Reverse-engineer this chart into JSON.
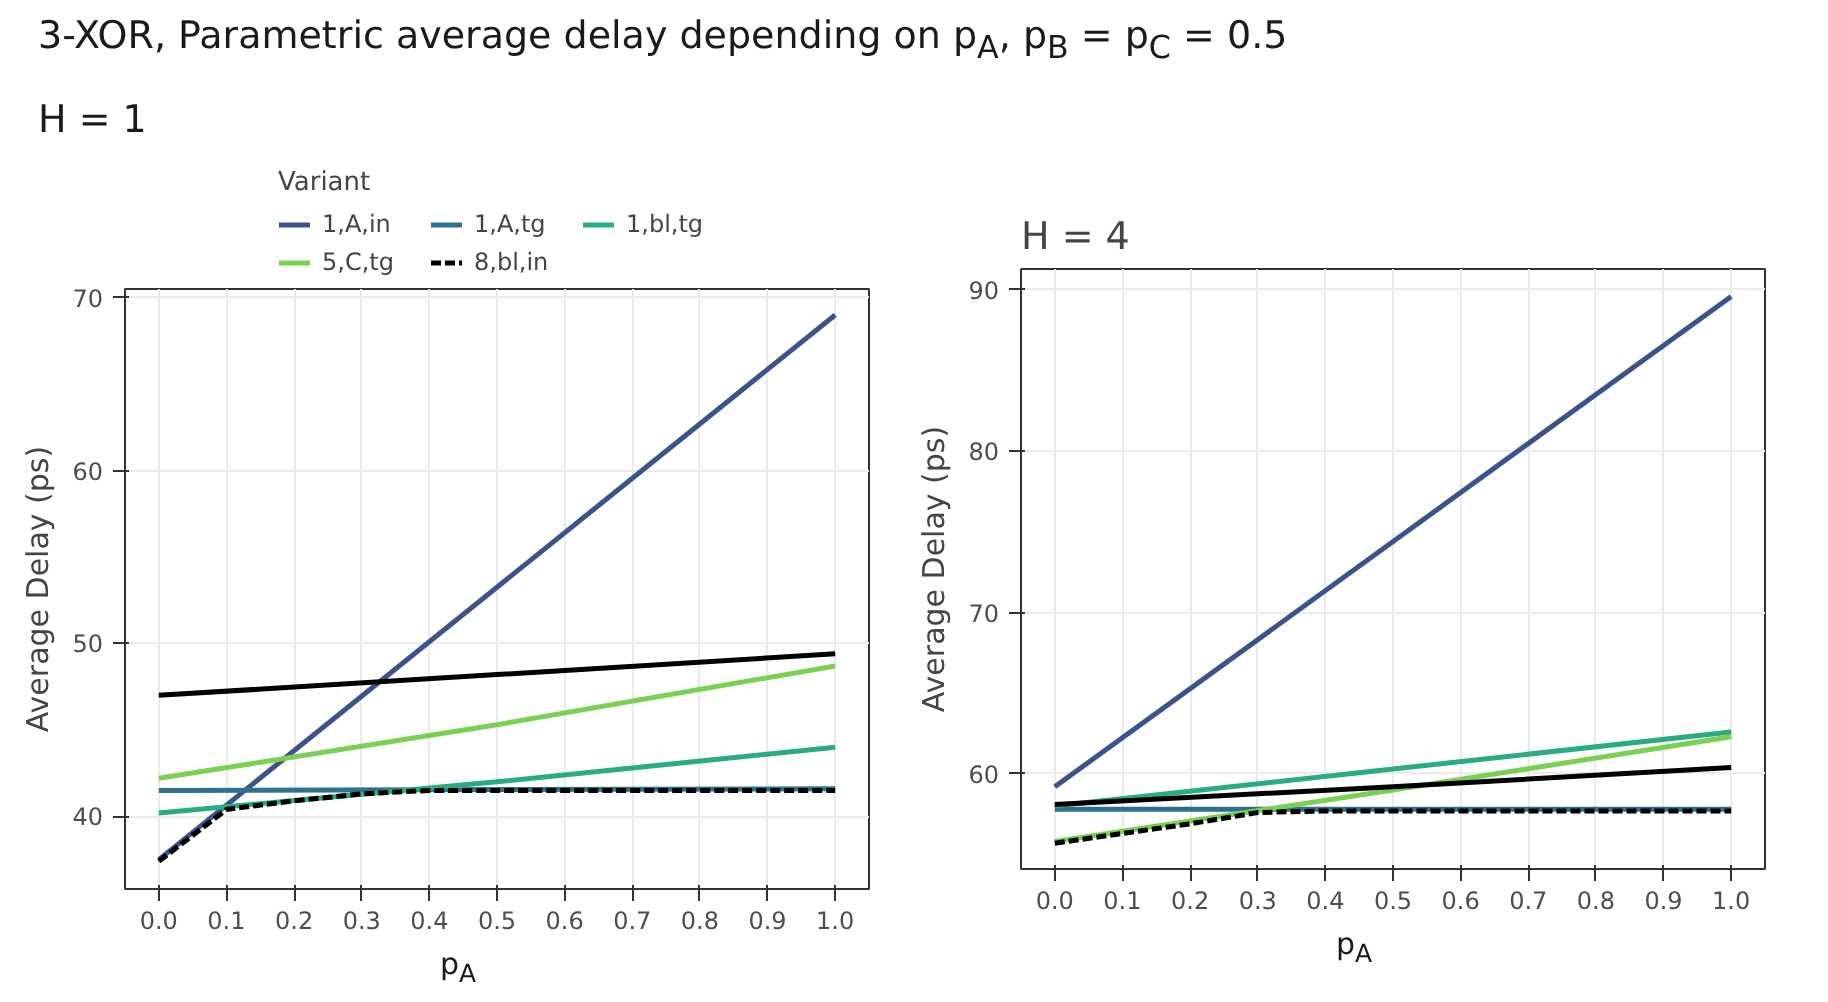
{
  "chart_data": [
    {
      "type": "line",
      "title": "3-XOR, Parametric average delay depending on p$_{A}$, p$_{B}$ = p$_{C}$ = 0.5",
      "subtitle": "H = 1",
      "xlabel": "p$_{A}$",
      "ylabel": "Average Delay (ps)",
      "legend_title": "Variant",
      "legend": "top",
      "xlim": [
        -0.05,
        1.05
      ],
      "ylim": [
        35.8,
        70.5
      ],
      "xticks": [
        {
          "value": 0,
          "label": "0.0"
        },
        {
          "value": 0.1,
          "label": "0.1"
        },
        {
          "value": 0.2,
          "label": "0.2"
        },
        {
          "value": 0.3,
          "label": "0.3"
        },
        {
          "value": 0.4,
          "label": "0.4"
        },
        {
          "value": 0.5,
          "label": "0.5"
        },
        {
          "value": 0.6,
          "label": "0.6"
        },
        {
          "value": 0.7,
          "label": "0.7"
        },
        {
          "value": 0.8,
          "label": "0.8"
        },
        {
          "value": 0.9,
          "label": "0.9"
        },
        {
          "value": 1,
          "label": "1.0"
        }
      ],
      "yticks": [
        40,
        50,
        60,
        70
      ],
      "grid": true,
      "series": [
        {
          "name": "1,A,in",
          "color": "#3b528b",
          "x": [
            0,
            1
          ],
          "values": [
            37.5,
            69.0
          ]
        },
        {
          "name": "1,A,tg",
          "color": "#2c728e",
          "x": [
            0,
            1
          ],
          "values": [
            41.5,
            41.6
          ]
        },
        {
          "name": "1,bl,tg",
          "color": "#27ad81",
          "x": [
            0,
            0.5,
            1
          ],
          "values": [
            40.2,
            42.0,
            44.0
          ]
        },
        {
          "name": "5,C,tg",
          "color": "#7ad151",
          "x": [
            0,
            0.5,
            1
          ],
          "values": [
            42.2,
            45.3,
            48.7
          ]
        },
        {
          "color": "#000000",
          "x": [
            0,
            0.5,
            1
          ],
          "values": [
            47.0,
            48.2,
            49.4
          ]
        },
        {
          "name": "8,bl,in",
          "color": "#000000",
          "line_style": "dashed",
          "x": [
            0,
            0.1,
            0.2,
            0.3,
            0.4,
            1
          ],
          "values": [
            37.4,
            40.4,
            40.9,
            41.3,
            41.5,
            41.5
          ]
        }
      ]
    },
    {
      "type": "line",
      "title": "H = 4",
      "xlabel": "p$_{A}$",
      "ylabel": "Average Delay (ps)",
      "xlim": [
        -0.05,
        1.05
      ],
      "ylim": [
        54.1,
        91.3
      ],
      "xticks": [
        {
          "value": 0,
          "label": "0.0"
        },
        {
          "value": 0.1,
          "label": "0.1"
        },
        {
          "value": 0.2,
          "label": "0.2"
        },
        {
          "value": 0.3,
          "label": "0.3"
        },
        {
          "value": 0.4,
          "label": "0.4"
        },
        {
          "value": 0.5,
          "label": "0.5"
        },
        {
          "value": 0.6,
          "label": "0.6"
        },
        {
          "value": 0.7,
          "label": "0.7"
        },
        {
          "value": 0.8,
          "label": "0.8"
        },
        {
          "value": 0.9,
          "label": "0.9"
        },
        {
          "value": 1,
          "label": "1.0"
        }
      ],
      "yticks": [
        60,
        70,
        80,
        90
      ],
      "grid": true,
      "series": [
        {
          "color": "#3b528b",
          "x": [
            0,
            1
          ],
          "values": [
            59.2,
            89.6
          ]
        },
        {
          "color": "#2c728e",
          "x": [
            0,
            1
          ],
          "values": [
            57.8,
            57.8
          ]
        },
        {
          "color": "#27ad81",
          "x": [
            0,
            0.5,
            1
          ],
          "values": [
            58.0,
            60.3,
            62.6
          ]
        },
        {
          "color": "#7ad151",
          "x": [
            0,
            0.5,
            1
          ],
          "values": [
            55.8,
            59.0,
            62.3
          ]
        },
        {
          "color": "#000000",
          "x": [
            0,
            0.5,
            1
          ],
          "values": [
            58.1,
            59.2,
            60.4
          ]
        },
        {
          "color": "#000000",
          "line_style": "dashed",
          "x": [
            0,
            0.1,
            0.2,
            0.3,
            0.4,
            1
          ],
          "values": [
            55.7,
            56.3,
            56.9,
            57.6,
            57.7,
            57.7
          ]
        }
      ]
    }
  ]
}
